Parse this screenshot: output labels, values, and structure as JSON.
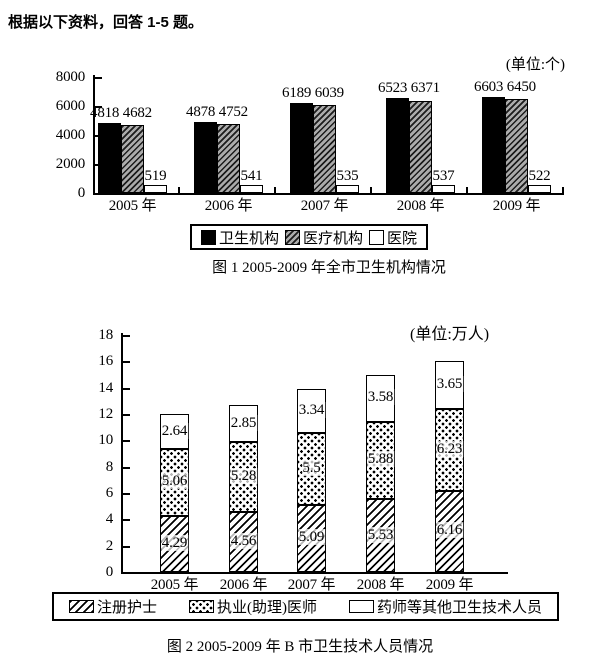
{
  "page": {
    "instruction": "根据以下资料，回答 1-5 题。"
  },
  "chart_data": [
    {
      "type": "bar",
      "title": "图 1 2005-2009 年全市卫生机构情况",
      "unit_label": "(单位:个)",
      "categories": [
        "2005 年",
        "2006 年",
        "2007 年",
        "2008 年",
        "2009 年"
      ],
      "series": [
        {
          "name": "卫生机构",
          "pattern": "solid-black",
          "values": [
            4818,
            4878,
            6189,
            6523,
            6603
          ]
        },
        {
          "name": "医疗机构",
          "pattern": "gray-hatch",
          "values": [
            4682,
            4752,
            6039,
            6371,
            6450
          ]
        },
        {
          "name": "医院",
          "pattern": "white",
          "values": [
            519,
            541,
            535,
            537,
            522
          ]
        }
      ],
      "ylim": [
        0,
        8000
      ],
      "yticks": [
        0,
        2000,
        4000,
        6000,
        8000
      ],
      "legend_position": "bottom",
      "grid": false
    },
    {
      "type": "stacked-bar",
      "title": "图 2 2005-2009 年 B 市卫生技术人员情况",
      "unit_label": "(单位:万人)",
      "categories": [
        "2005 年",
        "2006 年",
        "2007 年",
        "2008 年",
        "2009 年"
      ],
      "series": [
        {
          "name": "注册护士",
          "pattern": "diag-hatch",
          "values": [
            4.29,
            4.56,
            5.09,
            5.53,
            6.16
          ],
          "labels": [
            "4.29",
            "4.56",
            "5.09",
            "5.53",
            "6.16"
          ]
        },
        {
          "name": "执业(助理)医师",
          "pattern": "dots",
          "values": [
            5.06,
            5.28,
            5.5,
            5.88,
            6.23
          ],
          "labels": [
            "5.06",
            "5.28",
            "5.5",
            "5.88",
            "6.23"
          ]
        },
        {
          "name": "药师等其他卫生技术人员",
          "pattern": "white",
          "values": [
            2.64,
            2.85,
            3.34,
            3.58,
            3.65
          ],
          "labels": [
            "2.64",
            "2.85",
            "3.34",
            "3.58",
            "3.65"
          ]
        }
      ],
      "ylim": [
        0,
        18
      ],
      "yticks": [
        0,
        2,
        4,
        6,
        8,
        10,
        12,
        14,
        16,
        18
      ],
      "legend_position": "bottom",
      "grid": false
    }
  ]
}
